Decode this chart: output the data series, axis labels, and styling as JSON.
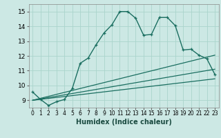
{
  "xlabel": "Humidex (Indice chaleur)",
  "bg_color": "#cce8e4",
  "grid_color": "#aad4cc",
  "line_color": "#1a6e60",
  "xlim": [
    -0.5,
    23.5
  ],
  "ylim": [
    8.5,
    15.5
  ],
  "xticks": [
    0,
    1,
    2,
    3,
    4,
    5,
    6,
    7,
    8,
    9,
    10,
    11,
    12,
    13,
    14,
    15,
    16,
    17,
    18,
    19,
    20,
    21,
    22,
    23
  ],
  "yticks": [
    9,
    10,
    11,
    12,
    13,
    14,
    15
  ],
  "line1_x": [
    0,
    1,
    2,
    3,
    4,
    5,
    6,
    7,
    8,
    9,
    10,
    11,
    12,
    13,
    14,
    15,
    16,
    17,
    18,
    19,
    20,
    21,
    22,
    23
  ],
  "line1_y": [
    9.55,
    9.05,
    8.65,
    8.9,
    9.05,
    9.8,
    11.5,
    11.85,
    12.75,
    13.55,
    14.1,
    15.0,
    15.0,
    14.55,
    13.4,
    13.45,
    14.6,
    14.6,
    14.05,
    12.4,
    12.45,
    12.05,
    11.8,
    10.75
  ],
  "line2_x": [
    0,
    23
  ],
  "line2_y": [
    9.0,
    12.05
  ],
  "line3_x": [
    0,
    23
  ],
  "line3_y": [
    9.0,
    11.1
  ],
  "line4_x": [
    0,
    23
  ],
  "line4_y": [
    9.0,
    10.45
  ]
}
